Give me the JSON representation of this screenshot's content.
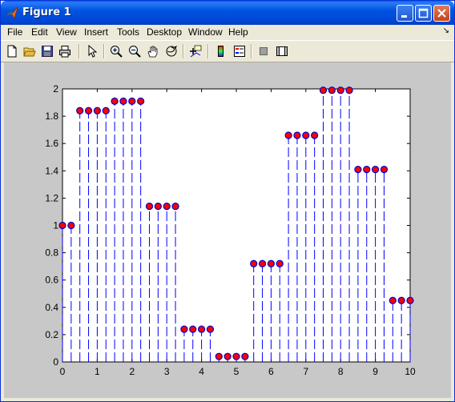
{
  "window": {
    "title": "Figure 1",
    "buttons": [
      "minimize",
      "maximize",
      "close"
    ]
  },
  "menu": [
    "File",
    "Edit",
    "View",
    "Insert",
    "Tools",
    "Desktop",
    "Window",
    "Help"
  ],
  "toolbar": [
    "new-figure-icon",
    "open-file-icon",
    "save-icon",
    "print-icon",
    "pointer-icon",
    "zoom-in-icon",
    "zoom-out-icon",
    "pan-icon",
    "rotate-3d-icon",
    "data-cursor-icon",
    "colorbar-icon",
    "legend-icon",
    "hide-plot-tools-icon",
    "show-plot-tools-icon"
  ],
  "colors": {
    "stem": "#0000ff",
    "marker_face": "#ff0000",
    "marker_edge": "#0000cc",
    "figure_bg": "#c8c8c8"
  },
  "chart_data": {
    "type": "stem",
    "title": "",
    "xlabel": "",
    "ylabel": "",
    "xlim": [
      0,
      10
    ],
    "ylim": [
      0,
      2
    ],
    "xticks": [
      "0",
      "1",
      "2",
      "3",
      "4",
      "5",
      "6",
      "7",
      "8",
      "9",
      "10"
    ],
    "yticks": [
      "0",
      "0.2",
      "0.4",
      "0.6",
      "0.8",
      "1",
      "1.2",
      "1.4",
      "1.6",
      "1.8",
      "2"
    ],
    "step": 0.25,
    "values": [
      1.0,
      1.0,
      1.84,
      1.84,
      1.84,
      1.84,
      1.91,
      1.91,
      1.91,
      1.91,
      1.14,
      1.14,
      1.14,
      1.14,
      0.24,
      0.24,
      0.24,
      0.24,
      0.04,
      0.04,
      0.04,
      0.04,
      0.72,
      0.72,
      0.72,
      0.72,
      1.66,
      1.66,
      1.66,
      1.66,
      1.99,
      1.99,
      1.99,
      1.99,
      1.41,
      1.41,
      1.41,
      1.41,
      0.45,
      0.45,
      0.45
    ],
    "grid": false,
    "line_style": "dashed"
  }
}
